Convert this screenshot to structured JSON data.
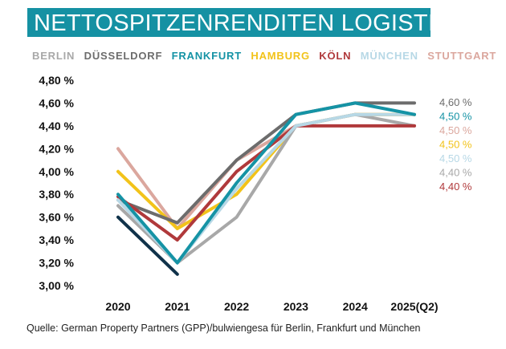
{
  "title": "NETTOSPITZENRENDITEN LOGISTIK",
  "footnote": "Quelle: German Property Partners (GPP)/bulwiengesa für Berlin, Frankfurt und München",
  "colors": {
    "title_bg": "#1591a3",
    "Berlin": "#a8a8a8",
    "Düsseldorf": "#6c6c6c",
    "Frankfurt": "#1593a5",
    "Hamburg": "#f2c31a",
    "Köln": "#b0393b",
    "München": "#b7d8e6",
    "Stuttgart": "#dba79e",
    "navy": "#10324a"
  },
  "chart_data": {
    "type": "line",
    "title": "NETTOSPITZENRENDITEN LOGISTIK",
    "categories": [
      "2020",
      "2021",
      "2022",
      "2023",
      "2024",
      "2025(Q2)"
    ],
    "yticks": [
      "3,00 %",
      "3,20 %",
      "3,40 %",
      "3,60 %",
      "3,80 %",
      "4,00 %",
      "4,20 %",
      "4,40 %",
      "4,60 %",
      "4,80 %"
    ],
    "ylim": [
      3.0,
      4.8
    ],
    "legend": [
      "BERLIN",
      "DÜSSELDORF",
      "FRANKFURT",
      "HAMBURG",
      "KÖLN",
      "MÜNCHEN",
      "STUTTGART"
    ],
    "end_labels": [
      {
        "text": "4,60 %",
        "series": "Düsseldorf"
      },
      {
        "text": "4,50 %",
        "series": "Frankfurt"
      },
      {
        "text": "4,50 %",
        "series": "Stuttgart"
      },
      {
        "text": "4,50 %",
        "series": "Hamburg"
      },
      {
        "text": "4,50 %",
        "series": "München"
      },
      {
        "text": "4,40 %",
        "series": "Berlin"
      },
      {
        "text": "4,40 %",
        "series": "Köln"
      }
    ],
    "series": [
      {
        "name": "Stuttgart",
        "values": [
          4.2,
          3.5,
          4.1,
          4.4,
          4.5,
          4.5
        ]
      },
      {
        "name": "Hamburg",
        "values": [
          4.0,
          3.5,
          3.8,
          4.4,
          4.5,
          4.5
        ]
      },
      {
        "name": "Berlin",
        "values": [
          3.7,
          3.2,
          3.6,
          4.4,
          4.5,
          4.4
        ]
      },
      {
        "name": "Düsseldorf",
        "values": [
          3.75,
          3.55,
          4.1,
          4.5,
          4.6,
          4.6
        ]
      },
      {
        "name": "Köln",
        "values": [
          3.78,
          3.4,
          4.0,
          4.4,
          4.4,
          4.4
        ]
      },
      {
        "name": "München",
        "values": [
          3.75,
          3.2,
          3.85,
          4.4,
          4.5,
          4.5
        ]
      },
      {
        "name": "Frankfurt",
        "values": [
          3.8,
          3.2,
          3.9,
          4.5,
          4.6,
          4.5
        ]
      },
      {
        "values": [
          3.6,
          3.1,
          null,
          null,
          null,
          null
        ]
      }
    ]
  }
}
